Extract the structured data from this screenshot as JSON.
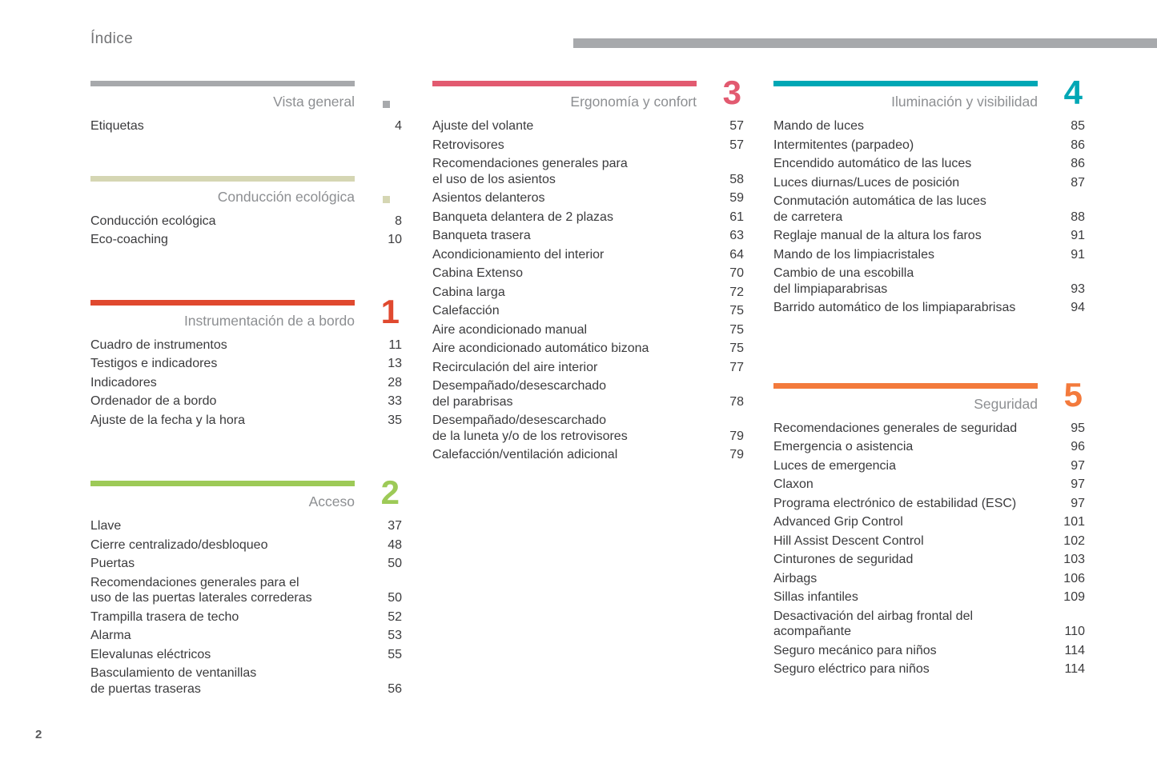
{
  "page": {
    "title": "Índice",
    "footer_page_number": "2"
  },
  "columns": [
    {
      "sections": [
        {
          "title": "Vista general",
          "marker": "square",
          "color": "#a7a9ac",
          "items": [
            {
              "label": "Etiquetas",
              "page": "4"
            }
          ]
        },
        {
          "title": "Conducción ecológica",
          "marker": "square",
          "color": "#d5d6b3",
          "items": [
            {
              "label": "Conducción ecológica",
              "page": "8"
            },
            {
              "label": "Eco-coaching",
              "page": "10"
            }
          ]
        },
        {
          "title": "Instrumentación de a bordo",
          "number": "1",
          "color": "#e0492f",
          "items": [
            {
              "label": "Cuadro de instrumentos",
              "page": "11"
            },
            {
              "label": "Testigos e indicadores",
              "page": "13"
            },
            {
              "label": "Indicadores",
              "page": "28"
            },
            {
              "label": "Ordenador de a bordo",
              "page": "33"
            },
            {
              "label": "Ajuste de la fecha y la hora",
              "page": "35"
            }
          ]
        },
        {
          "title": "Acceso",
          "number": "2",
          "color": "#9dca57",
          "items": [
            {
              "label": "Llave",
              "page": "37"
            },
            {
              "label": "Cierre centralizado/desbloqueo",
              "page": "48"
            },
            {
              "label": "Puertas",
              "page": "50"
            },
            {
              "label": "Recomendaciones generales para el\nuso de las puertas laterales correderas",
              "page": "50"
            },
            {
              "label": "Trampilla trasera de techo",
              "page": "52"
            },
            {
              "label": "Alarma",
              "page": "53"
            },
            {
              "label": "Elevalunas eléctricos",
              "page": "55"
            },
            {
              "label": "Basculamiento de ventanillas\nde puertas traseras",
              "page": "56"
            }
          ]
        }
      ]
    },
    {
      "sections": [
        {
          "title": "Ergonomía y confort",
          "number": "3",
          "color": "#e25a70",
          "items": [
            {
              "label": "Ajuste del volante",
              "page": "57"
            },
            {
              "label": "Retrovisores",
              "page": "57"
            },
            {
              "label": "Recomendaciones generales para\nel uso de los asientos",
              "page": "58"
            },
            {
              "label": "Asientos delanteros",
              "page": "59"
            },
            {
              "label": "Banqueta delantera de 2 plazas",
              "page": "61"
            },
            {
              "label": "Banqueta trasera",
              "page": "63"
            },
            {
              "label": "Acondicionamiento del interior",
              "page": "64"
            },
            {
              "label": "Cabina Extenso",
              "page": "70"
            },
            {
              "label": "Cabina larga",
              "page": "72"
            },
            {
              "label": "Calefacción",
              "page": "75"
            },
            {
              "label": "Aire acondicionado manual",
              "page": "75"
            },
            {
              "label": "Aire acondicionado automático bizona",
              "page": "75"
            },
            {
              "label": "Recirculación del aire interior",
              "page": "77"
            },
            {
              "label": "Desempañado/desescarchado\ndel parabrisas",
              "page": "78"
            },
            {
              "label": "Desempañado/desescarchado\nde la luneta y/o de los retrovisores",
              "page": "79"
            },
            {
              "label": "Calefacción/ventilación adicional",
              "page": "79"
            }
          ]
        }
      ]
    },
    {
      "sections": [
        {
          "title": "Iluminación y visibilidad",
          "number": "4",
          "color": "#00a7b5",
          "items": [
            {
              "label": "Mando de luces",
              "page": "85"
            },
            {
              "label": "Intermitentes (parpadeo)",
              "page": "86"
            },
            {
              "label": "Encendido automático de las luces",
              "page": "86"
            },
            {
              "label": "Luces diurnas/Luces de posición",
              "page": "87"
            },
            {
              "label": "Conmutación automática de las luces\nde carretera",
              "page": "88"
            },
            {
              "label": "Reglaje manual de la altura los faros",
              "page": "91"
            },
            {
              "label": "Mando de los limpiacristales",
              "page": "91"
            },
            {
              "label": "Cambio de una escobilla\ndel limpiaparabrisas",
              "page": "93"
            },
            {
              "label": "Barrido automático de los limpiaparabrisas",
              "page": "94"
            }
          ]
        },
        {
          "title": "Seguridad",
          "number": "5",
          "color": "#f37a3c",
          "items": [
            {
              "label": "Recomendaciones generales de seguridad",
              "page": "95"
            },
            {
              "label": "Emergencia o asistencia",
              "page": "96"
            },
            {
              "label": "Luces de emergencia",
              "page": "97"
            },
            {
              "label": "Claxon",
              "page": "97"
            },
            {
              "label": "Programa electrónico de estabilidad (ESC)",
              "page": "97"
            },
            {
              "label": "Advanced Grip Control",
              "page": "101"
            },
            {
              "label": "Hill Assist Descent Control",
              "page": "102"
            },
            {
              "label": "Cinturones de seguridad",
              "page": "103"
            },
            {
              "label": "Airbags",
              "page": "106"
            },
            {
              "label": "Sillas infantiles",
              "page": "109"
            },
            {
              "label": "Desactivación del airbag frontal del\nacompañante",
              "page": "110"
            },
            {
              "label": "Seguro mecánico para niños",
              "page": "114"
            },
            {
              "label": "Seguro eléctrico para niños",
              "page": "114"
            }
          ]
        }
      ]
    }
  ]
}
